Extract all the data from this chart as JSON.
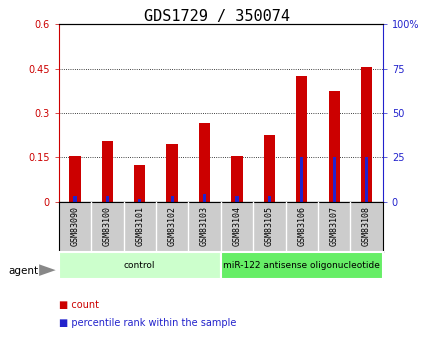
{
  "title": "GDS1729 / 350074",
  "samples": [
    "GSM83090",
    "GSM83100",
    "GSM83101",
    "GSM83102",
    "GSM83103",
    "GSM83104",
    "GSM83105",
    "GSM83106",
    "GSM83107",
    "GSM83108"
  ],
  "count_values": [
    0.155,
    0.205,
    0.125,
    0.195,
    0.265,
    0.155,
    0.225,
    0.425,
    0.375,
    0.455
  ],
  "percentile_values": [
    3.5,
    3.5,
    1.5,
    3.0,
    4.5,
    3.5,
    3.5,
    25.0,
    25.0,
    25.0
  ],
  "count_color": "#cc0000",
  "percentile_color": "#2222cc",
  "left_ylim": [
    0,
    0.6
  ],
  "right_ylim": [
    0,
    100
  ],
  "left_yticks": [
    0,
    0.15,
    0.3,
    0.45,
    0.6
  ],
  "right_yticks": [
    0,
    25,
    50,
    75,
    100
  ],
  "left_ytick_labels": [
    "0",
    "0.15",
    "0.3",
    "0.45",
    "0.6"
  ],
  "right_ytick_labels": [
    "0",
    "25",
    "50",
    "75",
    "100%"
  ],
  "groups": [
    {
      "label": "control",
      "start": 0,
      "end": 4,
      "color": "#ccffcc"
    },
    {
      "label": "miR-122 antisense oligonucleotide",
      "start": 5,
      "end": 9,
      "color": "#66ee66"
    }
  ],
  "agent_label": "agent",
  "legend_items": [
    {
      "label": "count",
      "color": "#cc0000"
    },
    {
      "label": "percentile rank within the sample",
      "color": "#2222cc"
    }
  ],
  "bar_width": 0.35,
  "plot_bg_color": "#ffffff",
  "xlabels_bg_color": "#cccccc",
  "background_color": "#ffffff",
  "title_fontsize": 11,
  "tick_fontsize": 7,
  "label_fontsize": 7.5
}
